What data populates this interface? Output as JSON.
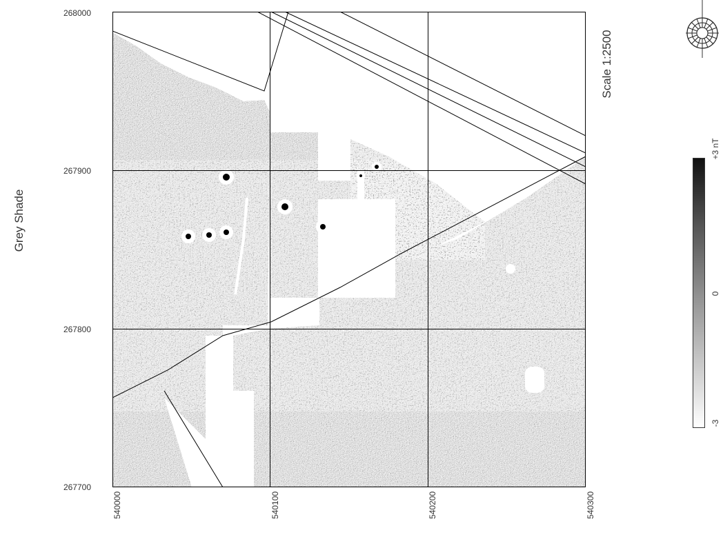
{
  "title": "Grey Shade",
  "scale_label": "Scale 1:2500",
  "y_ticks": [
    "268000",
    "267900",
    "267800",
    "267700"
  ],
  "x_ticks": [
    "540000",
    "540100",
    "540200",
    "540300"
  ],
  "legend": {
    "top_label": "+3 nT",
    "mid_label": "0",
    "bottom_label": "-3",
    "colors": [
      "#000000",
      "#808080",
      "#ffffff"
    ]
  },
  "compass": {
    "icon": "compass-rose-icon"
  },
  "map": {
    "easting_range": [
      540000,
      540300
    ],
    "northing_range": [
      267700,
      268000
    ],
    "grid_spacing": 100
  }
}
